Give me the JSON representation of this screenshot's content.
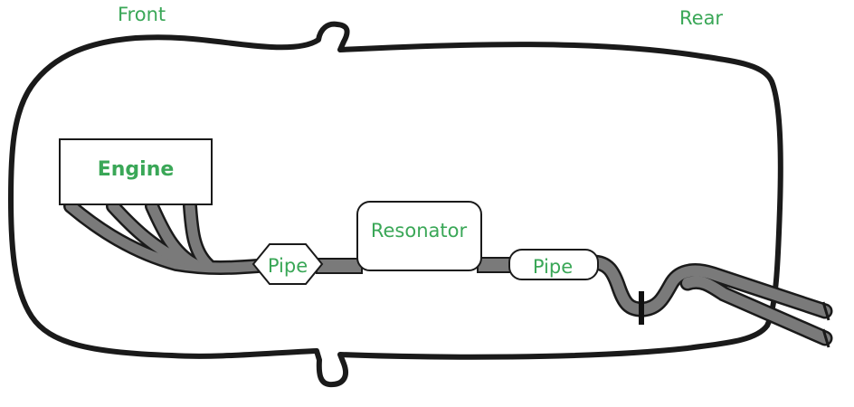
{
  "labels": {
    "front": "Front",
    "rear": "Rear",
    "engine": "Engine",
    "pipe_1": "Pipe",
    "resonator": "Resonator",
    "pipe_2": "Pipe"
  },
  "colors": {
    "label_green": "#3aa757",
    "outline": "#1a1a1a",
    "pipe_fill": "#7a7a7a",
    "background": "#ffffff"
  }
}
